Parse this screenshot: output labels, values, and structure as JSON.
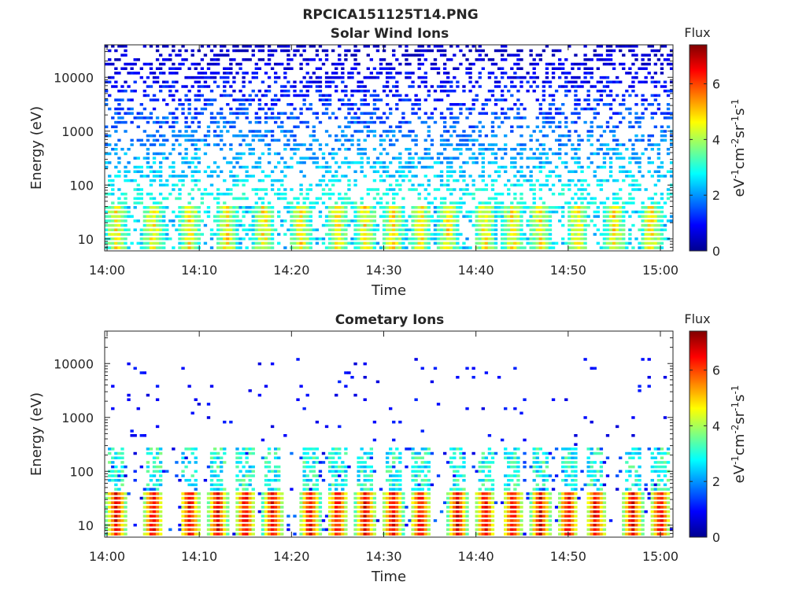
{
  "figure": {
    "title": "RPCICA151125T14.PNG"
  },
  "colorbar": {
    "stops": [
      "#00008f",
      "#0000ff",
      "#0080ff",
      "#00ffff",
      "#80ff80",
      "#ffff00",
      "#ff8000",
      "#ff0000",
      "#800000"
    ]
  },
  "chart_data": [
    {
      "type": "heatmap",
      "title": "Solar Wind Ions",
      "xlabel": "Time",
      "ylabel": "Energy (eV)",
      "x_tick_labels": [
        "14:00",
        "14:10",
        "14:20",
        "14:30",
        "14:40",
        "14:50",
        "15:00"
      ],
      "x_range": [
        "14:00",
        "15:01"
      ],
      "y_scale": "log",
      "y_tick_labels": [
        "10",
        "100",
        "1000",
        "10000"
      ],
      "y_range": [
        6,
        40000
      ],
      "colorbar_title": "Flux",
      "colorbar_label": "eV-1cm-2sr-1s-1",
      "colorbar_ticks": [
        "0",
        "2",
        "4",
        "6"
      ],
      "colorbar_range": [
        0,
        7.4
      ],
      "peak_times_min": [
        1,
        5,
        9,
        13,
        17,
        21,
        25,
        28,
        31,
        34,
        37,
        41,
        44,
        47,
        51,
        55,
        59
      ],
      "background_level": 2.5,
      "low_band_peak_level": 4.8,
      "low_band_energy_range_eV": [
        6,
        40
      ],
      "sparse_high_energy_range_eV": [
        40,
        40000
      ]
    },
    {
      "type": "heatmap",
      "title": "Cometary Ions",
      "xlabel": "Time",
      "ylabel": "Energy (eV)",
      "x_tick_labels": [
        "14:00",
        "14:10",
        "14:20",
        "14:30",
        "14:40",
        "14:50",
        "15:00"
      ],
      "x_range": [
        "14:00",
        "15:01"
      ],
      "y_scale": "log",
      "y_tick_labels": [
        "10",
        "100",
        "1000",
        "10000"
      ],
      "y_range": [
        6,
        40000
      ],
      "colorbar_title": "Flux",
      "colorbar_label": "eV-1cm-2sr-1s-1",
      "colorbar_ticks": [
        "0",
        "2",
        "4",
        "6"
      ],
      "colorbar_range": [
        0,
        7.4
      ],
      "peak_times_min": [
        1,
        5,
        9,
        12,
        15,
        18,
        22,
        25,
        28,
        31,
        34,
        38,
        41,
        44,
        47,
        50,
        53,
        57,
        60
      ],
      "background_level": 0.8,
      "low_band_peak_level": 6.8,
      "low_band_energy_range_eV": [
        6,
        300
      ],
      "sparse_high_energy_range_eV": [
        300,
        12000
      ]
    }
  ]
}
